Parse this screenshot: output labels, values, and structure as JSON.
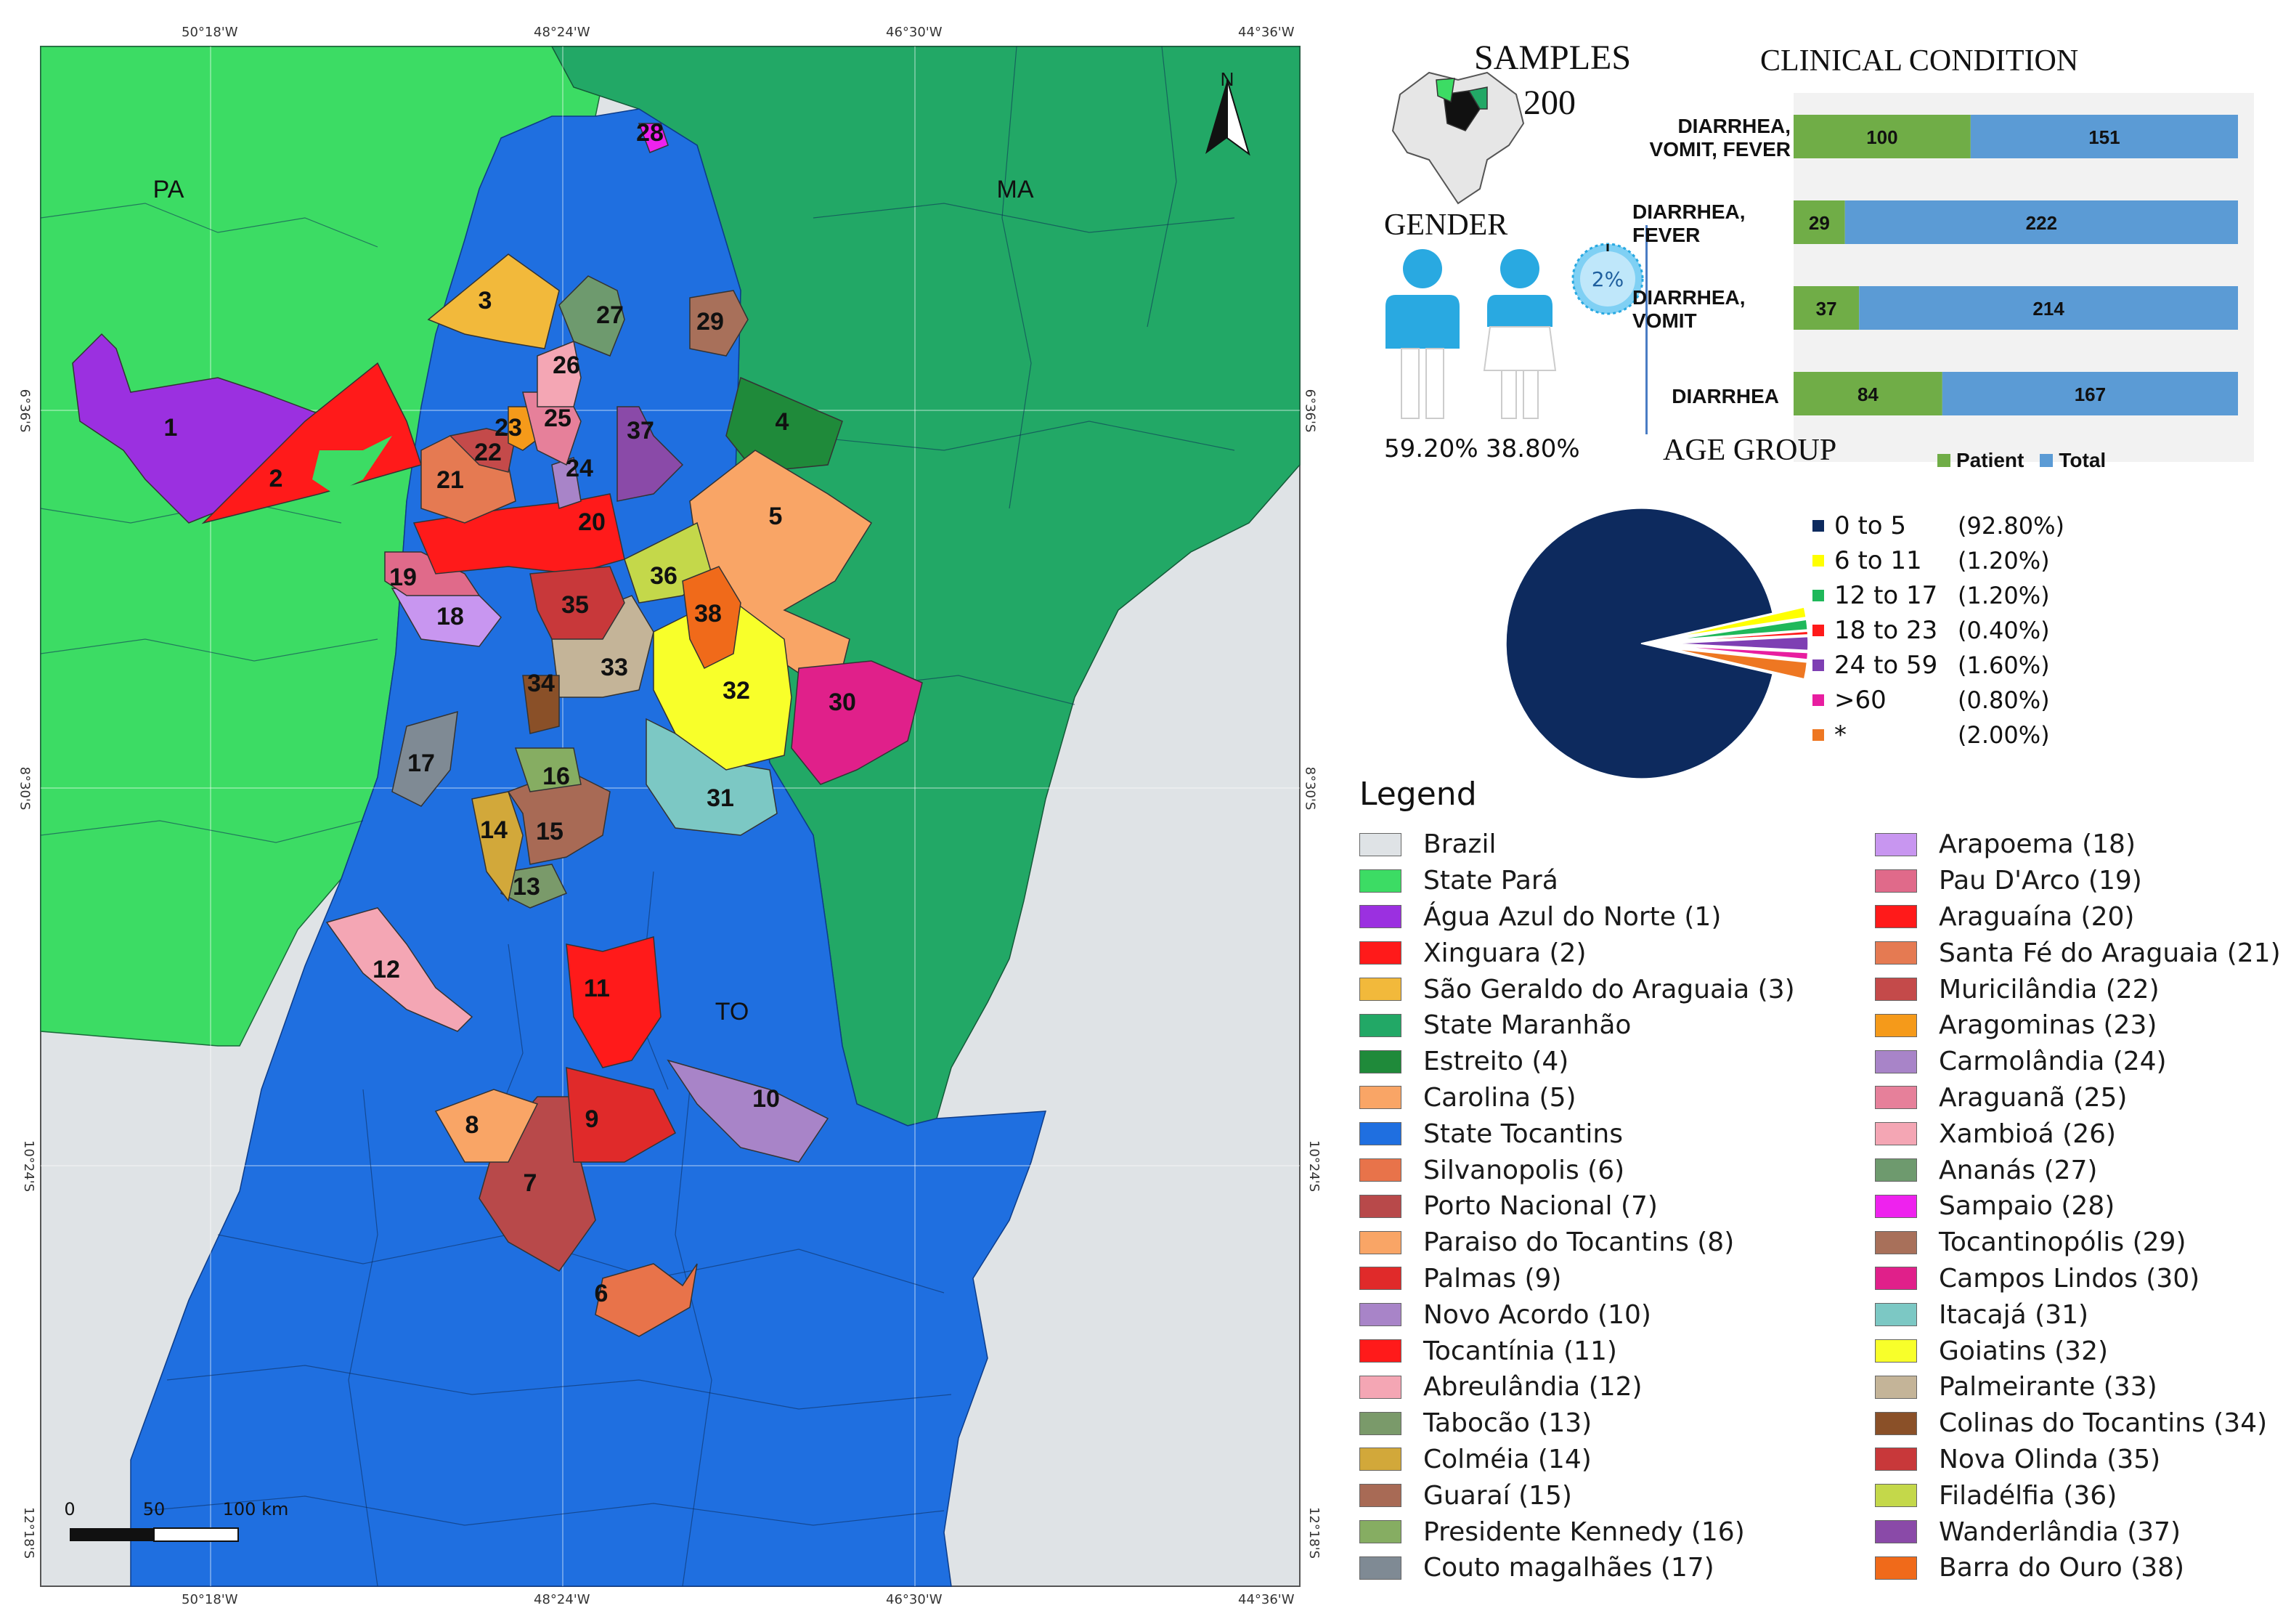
{
  "map": {
    "coords_top": [
      "50°18'W",
      "48°24'W",
      "46°30'W",
      "44°36'W"
    ],
    "coords_bottom": [
      "50°18'W",
      "48°24'W",
      "46°30'W",
      "44°36'W"
    ],
    "coords_left": [
      "6°36'S",
      "8°30'S",
      "10°24'S",
      "12°18'S"
    ],
    "coords_right": [
      "6°36'S",
      "8°30'S",
      "10°24'S",
      "12°18'S"
    ],
    "state_labels": {
      "pa": "PA",
      "ma": "MA",
      "to": "TO"
    },
    "north": "N",
    "scale": {
      "zero": "0",
      "mid": "50",
      "end": "100 km"
    },
    "colors": {
      "brazil": "#dfe3e6",
      "para": "#3cdc64",
      "maranhao": "#22a866",
      "tocantins": "#1f6fe0"
    }
  },
  "samples": {
    "title": "SAMPLES",
    "value": "200"
  },
  "gender": {
    "title": "GENDER",
    "male_pct": "59.20%",
    "female_pct": "38.80%",
    "other_pct": "2%"
  },
  "clinical": {
    "title": "CLINICAL CONDITION",
    "legend_patient": "Patient",
    "legend_total": "Total",
    "colors": {
      "patient": "#70ad47",
      "total": "#5b9bd5"
    }
  },
  "age_group": {
    "title": "AGE GROUP"
  },
  "chart_data": [
    {
      "type": "bar",
      "title": "CLINICAL CONDITION",
      "orientation": "horizontal",
      "stacked": true,
      "categories": [
        "DIARRHEA, VOMIT, FEVER",
        "DIARRHEA, FEVER",
        "DIARRHEA, VOMIT",
        "DIARRHEA"
      ],
      "series": [
        {
          "name": "Patient",
          "values": [
            100,
            29,
            37,
            84
          ],
          "color": "#70ad47"
        },
        {
          "name": "Total",
          "values": [
            151,
            222,
            214,
            167
          ],
          "color": "#5b9bd5"
        }
      ],
      "legend": "bottom"
    },
    {
      "type": "pie",
      "title": "AGE GROUP",
      "labels": [
        "0 to 5",
        "6 to 11",
        "12 to 17",
        "18 to 23",
        "24 to 59",
        ">60",
        "*"
      ],
      "values": [
        92.8,
        1.2,
        1.2,
        0.4,
        1.6,
        0.8,
        2.0
      ],
      "value_labels": [
        "(92.80%)",
        "(1.20%)",
        "(1.20%)",
        "(0.40%)",
        "(1.60%)",
        "(0.80%)",
        "(2.00%)"
      ],
      "colors": [
        "#0d2a5e",
        "#ffff00",
        "#1fb85a",
        "#ff1a1a",
        "#7e3fb3",
        "#e81ea0",
        "#ee7722"
      ],
      "legend": "right"
    }
  ],
  "legend": {
    "title": "Legend",
    "col1": [
      {
        "label": "Brazil",
        "color": "#dfe3e6"
      },
      {
        "label": "State Pará",
        "color": "#3cdc64"
      },
      {
        "label": "Água Azul do Norte (1)",
        "color": "#9b30e0"
      },
      {
        "label": "Xinguara (2)",
        "color": "#ff1a1a"
      },
      {
        "label": "São Geraldo do Araguaia (3)",
        "color": "#f2b93b"
      },
      {
        "label": "State Maranhão",
        "color": "#22a866"
      },
      {
        "label": "Estreito (4)",
        "color": "#1f8a3a"
      },
      {
        "label": "Carolina (5)",
        "color": "#f9a566"
      },
      {
        "label": "State Tocantins",
        "color": "#1f6fe0"
      },
      {
        "label": "Silvanopolis (6)",
        "color": "#e8734a"
      },
      {
        "label": "Porto Nacional (7)",
        "color": "#b8494a"
      },
      {
        "label": "Paraiso do Tocantins (8)",
        "color": "#f9a566"
      },
      {
        "label": "Palmas (9)",
        "color": "#e02a2a"
      },
      {
        "label": "Novo Acordo (10)",
        "color": "#a884c8"
      },
      {
        "label": "Tocantínia (11)",
        "color": "#ff1a1a"
      },
      {
        "label": "Abreulândia (12)",
        "color": "#f4a6b4"
      },
      {
        "label": "Tabocão (13)",
        "color": "#7a9a6a"
      },
      {
        "label": "Colméia (14)",
        "color": "#d2a83a"
      },
      {
        "label": "Guaraí (15)",
        "color": "#a86a55"
      },
      {
        "label": "Presidente Kennedy (16)",
        "color": "#86ad62"
      },
      {
        "label": "Couto magalhães (17)",
        "color": "#7f8a94"
      }
    ],
    "col2": [
      {
        "label": "Arapoema (18)",
        "color": "#c896f0"
      },
      {
        "label": "Pau D'Arco (19)",
        "color": "#e06a8a"
      },
      {
        "label": "Araguaína (20)",
        "color": "#ff1a1a"
      },
      {
        "label": "Santa Fé do Araguaia (21)",
        "color": "#e57a52"
      },
      {
        "label": "Muricilândia (22)",
        "color": "#c44a4a"
      },
      {
        "label": "Aragominas (23)",
        "color": "#f59a1a"
      },
      {
        "label": "Carmolândia (24)",
        "color": "#a884c8"
      },
      {
        "label": "Araguanã (25)",
        "color": "#e6809a"
      },
      {
        "label": "Xambioá (26)",
        "color": "#f4a6b4"
      },
      {
        "label": "Ananás (27)",
        "color": "#6e9a6e"
      },
      {
        "label": "Sampaio (28)",
        "color": "#ee22ee"
      },
      {
        "label": "Tocantinopólis (29)",
        "color": "#a8705a"
      },
      {
        "label": "Campos Lindos (30)",
        "color": "#e0208a"
      },
      {
        "label": "Itacajá (31)",
        "color": "#7cc8c4"
      },
      {
        "label": "Goiatins (32)",
        "color": "#f8ff2a"
      },
      {
        "label": "Palmeirante (33)",
        "color": "#c4b498"
      },
      {
        "label": "Colinas do Tocantins (34)",
        "color": "#8a5028"
      },
      {
        "label": "Nova Olinda (35)",
        "color": "#c8383a"
      },
      {
        "label": "Filadélfia (36)",
        "color": "#c4d84a"
      },
      {
        "label": "Wanderlândia (37)",
        "color": "#8a4aa8"
      },
      {
        "label": "Barra do Ouro (38)",
        "color": "#f06a1a"
      }
    ]
  },
  "municipalities": {
    "m1": "1",
    "m2": "2",
    "m3": "3",
    "m4": "4",
    "m5": "5",
    "m6": "6",
    "m7": "7",
    "m8": "8",
    "m9": "9",
    "m10": "10",
    "m11": "11",
    "m12": "12",
    "m13": "13",
    "m14": "14",
    "m15": "15",
    "m16": "16",
    "m17": "17",
    "m18": "18",
    "m19": "19",
    "m20": "20",
    "m21": "21",
    "m22": "22",
    "m23": "23",
    "m24": "24",
    "m25": "25",
    "m26": "26",
    "m27": "27",
    "m28": "28",
    "m29": "29",
    "m30": "30",
    "m31": "31",
    "m32": "32",
    "m33": "33",
    "m34": "34",
    "m35": "35",
    "m36": "36",
    "m37": "37",
    "m38": "38"
  }
}
